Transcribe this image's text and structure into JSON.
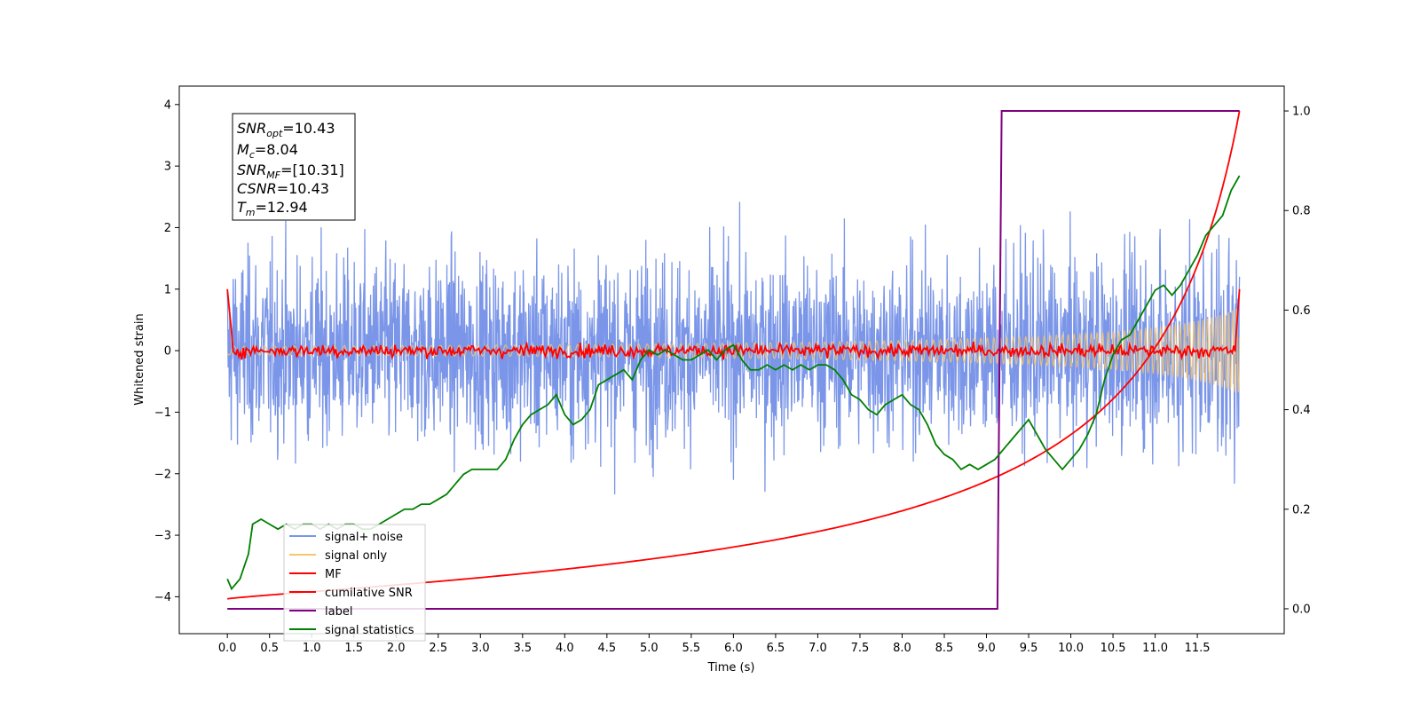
{
  "chart_data": {
    "type": "line",
    "xlabel": "Time (s)",
    "ylabel": "Whitened strain",
    "xlim": [
      -0.57,
      12.53
    ],
    "ylim": [
      -4.6,
      4.3
    ],
    "y2lim": [
      -0.05,
      1.05
    ],
    "x_ticks": [
      "0.0",
      "0.5",
      "1.0",
      "1.5",
      "2.0",
      "2.5",
      "3.0",
      "3.5",
      "4.0",
      "4.5",
      "5.0",
      "5.5",
      "6.0",
      "6.5",
      "7.0",
      "7.5",
      "8.0",
      "8.5",
      "9.0",
      "9.5",
      "10.0",
      "10.5",
      "11.0",
      "11.5"
    ],
    "y_ticks": [
      "4",
      "3",
      "2",
      "1",
      "0",
      "−1",
      "−2",
      "−3",
      "−4"
    ],
    "y2_ticks": [
      "1.0",
      "0.8",
      "0.6",
      "0.4",
      "0.2",
      "0.0"
    ],
    "stats_box": {
      "snr_opt": {
        "name": "SNR",
        "sub": "opt",
        "value": "=10.43"
      },
      "mc": {
        "name": "M",
        "sub": "c",
        "value": "=8.04"
      },
      "snr_mf": {
        "name": "SNR",
        "sub": "MF",
        "value": "=[10.31]"
      },
      "csnr": {
        "name": "CSNR",
        "sub": "",
        "value": "=10.43"
      },
      "tm": {
        "name": "T",
        "sub": "m",
        "value": "=12.94"
      }
    },
    "series": [
      {
        "name": "signal+ noise",
        "color": "#7b96e8",
        "axis": "left",
        "description_range": [
          -3.5,
          3.9
        ]
      },
      {
        "name": "signal only",
        "color": "#f7c56a",
        "axis": "left"
      },
      {
        "name": "MF",
        "color": "#ff0000",
        "axis": "left"
      },
      {
        "name": "cumilative SNR",
        "color": "#ff0000",
        "axis": "right"
      },
      {
        "name": "label",
        "color": "#800080",
        "axis": "right",
        "points": [
          [
            0.0,
            0.0
          ],
          [
            9.13,
            0.0
          ],
          [
            9.18,
            1.0
          ],
          [
            12.0,
            1.0
          ]
        ]
      },
      {
        "name": "signal statistics",
        "color": "#008000",
        "axis": "right",
        "points": [
          [
            0.0,
            0.06
          ],
          [
            0.05,
            0.04
          ],
          [
            0.15,
            0.06
          ],
          [
            0.25,
            0.11
          ],
          [
            0.3,
            0.17
          ],
          [
            0.4,
            0.18
          ],
          [
            0.5,
            0.17
          ],
          [
            0.6,
            0.16
          ],
          [
            0.7,
            0.17
          ],
          [
            0.8,
            0.16
          ],
          [
            0.9,
            0.17
          ],
          [
            1.0,
            0.17
          ],
          [
            1.1,
            0.16
          ],
          [
            1.2,
            0.17
          ],
          [
            1.3,
            0.16
          ],
          [
            1.4,
            0.17
          ],
          [
            1.5,
            0.17
          ],
          [
            1.6,
            0.16
          ],
          [
            1.7,
            0.16
          ],
          [
            1.8,
            0.17
          ],
          [
            1.9,
            0.18
          ],
          [
            2.0,
            0.19
          ],
          [
            2.1,
            0.2
          ],
          [
            2.2,
            0.2
          ],
          [
            2.3,
            0.21
          ],
          [
            2.4,
            0.21
          ],
          [
            2.5,
            0.22
          ],
          [
            2.6,
            0.23
          ],
          [
            2.7,
            0.25
          ],
          [
            2.8,
            0.27
          ],
          [
            2.9,
            0.28
          ],
          [
            3.0,
            0.28
          ],
          [
            3.1,
            0.28
          ],
          [
            3.2,
            0.28
          ],
          [
            3.3,
            0.3
          ],
          [
            3.4,
            0.34
          ],
          [
            3.5,
            0.37
          ],
          [
            3.6,
            0.39
          ],
          [
            3.7,
            0.4
          ],
          [
            3.8,
            0.41
          ],
          [
            3.9,
            0.43
          ],
          [
            4.0,
            0.39
          ],
          [
            4.1,
            0.37
          ],
          [
            4.2,
            0.38
          ],
          [
            4.3,
            0.4
          ],
          [
            4.4,
            0.45
          ],
          [
            4.5,
            0.46
          ],
          [
            4.6,
            0.47
          ],
          [
            4.7,
            0.48
          ],
          [
            4.8,
            0.46
          ],
          [
            4.9,
            0.5
          ],
          [
            5.0,
            0.52
          ],
          [
            5.1,
            0.51
          ],
          [
            5.2,
            0.52
          ],
          [
            5.3,
            0.51
          ],
          [
            5.4,
            0.5
          ],
          [
            5.5,
            0.5
          ],
          [
            5.6,
            0.51
          ],
          [
            5.7,
            0.52
          ],
          [
            5.8,
            0.5
          ],
          [
            5.9,
            0.52
          ],
          [
            6.0,
            0.53
          ],
          [
            6.1,
            0.5
          ],
          [
            6.2,
            0.48
          ],
          [
            6.3,
            0.48
          ],
          [
            6.4,
            0.49
          ],
          [
            6.5,
            0.48
          ],
          [
            6.6,
            0.49
          ],
          [
            6.7,
            0.48
          ],
          [
            6.8,
            0.49
          ],
          [
            6.9,
            0.48
          ],
          [
            7.0,
            0.49
          ],
          [
            7.1,
            0.49
          ],
          [
            7.2,
            0.48
          ],
          [
            7.3,
            0.46
          ],
          [
            7.4,
            0.43
          ],
          [
            7.5,
            0.42
          ],
          [
            7.6,
            0.4
          ],
          [
            7.7,
            0.39
          ],
          [
            7.8,
            0.41
          ],
          [
            7.9,
            0.42
          ],
          [
            8.0,
            0.43
          ],
          [
            8.1,
            0.41
          ],
          [
            8.2,
            0.4
          ],
          [
            8.3,
            0.37
          ],
          [
            8.4,
            0.33
          ],
          [
            8.5,
            0.31
          ],
          [
            8.6,
            0.3
          ],
          [
            8.7,
            0.28
          ],
          [
            8.8,
            0.29
          ],
          [
            8.9,
            0.28
          ],
          [
            9.0,
            0.29
          ],
          [
            9.1,
            0.3
          ],
          [
            9.2,
            0.32
          ],
          [
            9.3,
            0.34
          ],
          [
            9.4,
            0.36
          ],
          [
            9.5,
            0.38
          ],
          [
            9.6,
            0.35
          ],
          [
            9.7,
            0.32
          ],
          [
            9.8,
            0.3
          ],
          [
            9.9,
            0.28
          ],
          [
            10.0,
            0.3
          ],
          [
            10.1,
            0.32
          ],
          [
            10.2,
            0.35
          ],
          [
            10.3,
            0.39
          ],
          [
            10.4,
            0.46
          ],
          [
            10.5,
            0.51
          ],
          [
            10.6,
            0.54
          ],
          [
            10.7,
            0.55
          ],
          [
            10.8,
            0.58
          ],
          [
            10.9,
            0.61
          ],
          [
            11.0,
            0.64
          ],
          [
            11.1,
            0.65
          ],
          [
            11.2,
            0.63
          ],
          [
            11.3,
            0.65
          ],
          [
            11.4,
            0.68
          ],
          [
            11.5,
            0.71
          ],
          [
            11.6,
            0.75
          ],
          [
            11.7,
            0.77
          ],
          [
            11.8,
            0.79
          ],
          [
            11.9,
            0.84
          ],
          [
            12.0,
            0.87
          ]
        ]
      }
    ],
    "legend": {
      "placement": "lower-left",
      "entries": [
        "signal+ noise",
        "signal only",
        "MF",
        "cumilative SNR",
        "label",
        "signal statistics"
      ]
    }
  }
}
